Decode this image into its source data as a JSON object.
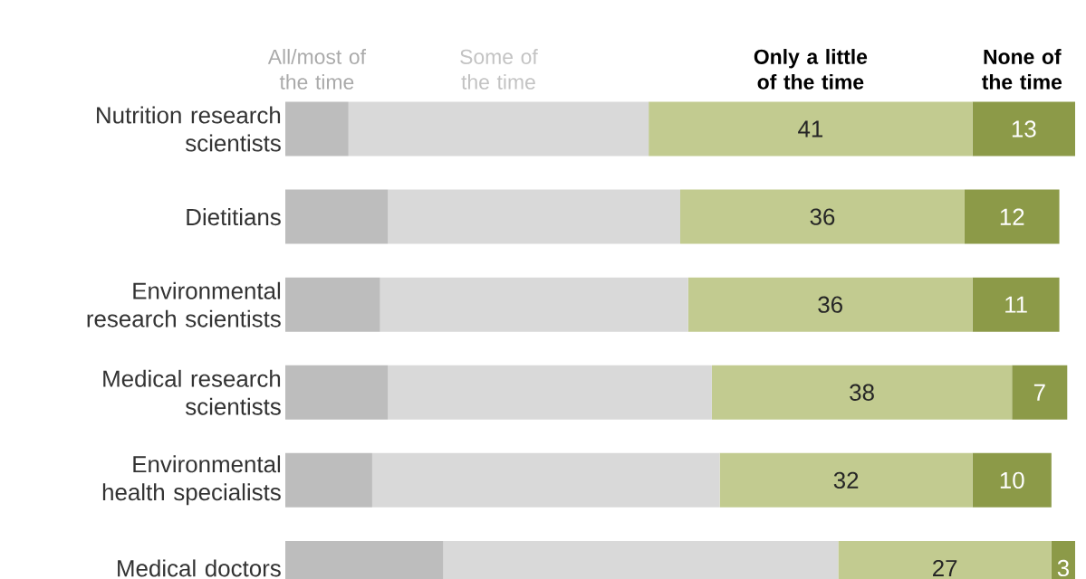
{
  "chart_data": {
    "type": "bar",
    "orientation": "horizontal",
    "stacked": true,
    "legend": "top",
    "categories": [
      "Nutrition research scientists",
      "Dietitians",
      "Environmental research scientists",
      "Medical research scientists",
      "Environmental health specialists",
      "Medical doctors"
    ],
    "series": [
      {
        "name": "All/most of the time",
        "color": "#bdbdbd",
        "values": [
          8,
          13,
          12,
          13,
          11,
          20
        ]
      },
      {
        "name": "Some of the time",
        "color": "#d9d9d9",
        "values": [
          38,
          37,
          39,
          41,
          44,
          50
        ]
      },
      {
        "name": "Only a little of the time",
        "color": "#c2cb90",
        "values": [
          41,
          36,
          36,
          38,
          32,
          27
        ],
        "value_labels": [
          "41",
          "36",
          "36",
          "38",
          "32",
          "27"
        ]
      },
      {
        "name": "None of the time",
        "color": "#8c9a48",
        "values": [
          13,
          12,
          11,
          7,
          10,
          3
        ],
        "value_labels": [
          "13",
          "12",
          "11",
          "7",
          "10",
          "3"
        ]
      }
    ]
  }
}
